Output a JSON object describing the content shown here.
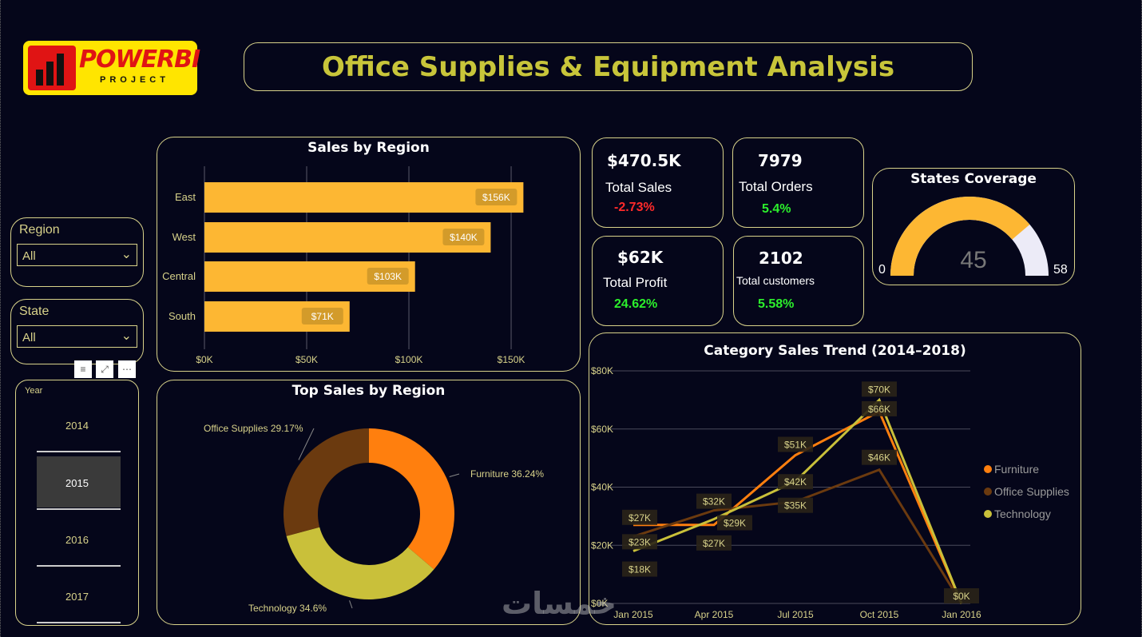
{
  "logo": {
    "line1": "POWERBI",
    "line2": "PROJECT"
  },
  "title": "Office Supplies & Equipment Analysis",
  "slicers": {
    "region": {
      "label": "Region",
      "value": "All"
    },
    "state": {
      "label": "State",
      "value": "All"
    },
    "year": {
      "label": "Year",
      "items": [
        "2014",
        "2015",
        "2016",
        "2017"
      ],
      "selected": "2015"
    }
  },
  "kpis": {
    "sales": {
      "value": "$470.5K",
      "label": "Total Sales",
      "delta": "-2.73%"
    },
    "orders": {
      "value": "7979",
      "label": "Total Orders",
      "delta": "5.4%"
    },
    "profit": {
      "value": "$62K",
      "label": "Total Profit",
      "delta": "24.62%"
    },
    "customers": {
      "value": "2102",
      "label": "Total customers",
      "delta": "5.58%"
    }
  },
  "gauge": {
    "title": "States Coverage",
    "value": 45,
    "min": 0,
    "max": 58,
    "value_label": "45",
    "min_label": "0",
    "max_label": "58"
  },
  "watermark": "خمسات",
  "colors": {
    "accent": "#fdb733",
    "title": "#c8c53a",
    "border": "#d8d28a",
    "furniture": "#ff7f0e",
    "office": "#6b3a0f",
    "technology": "#c9c03a"
  },
  "chart_data": [
    {
      "type": "bar",
      "title": "Sales by Region",
      "categories": [
        "East",
        "West",
        "Central",
        "South"
      ],
      "values": [
        156,
        140,
        103,
        71
      ],
      "value_labels": [
        "$156K",
        "$140K",
        "$103K",
        "$71K"
      ],
      "xticks": [
        "$0K",
        "$50K",
        "$100K",
        "$150K"
      ],
      "xlim": [
        0,
        170
      ]
    },
    {
      "type": "pie",
      "title": "Top Sales by Region",
      "labels": [
        "Furniture",
        "Technology",
        "Office Supplies"
      ],
      "values": [
        36.24,
        34.6,
        29.17
      ],
      "slice_labels": [
        "Furniture 36.24%",
        "Technology 34.6%",
        "Office Supplies 29.17%"
      ]
    },
    {
      "type": "line",
      "title": "Category Sales Trend (2014–2018)",
      "x": [
        "Jan 2015",
        "Apr 2015",
        "Jul 2015",
        "Oct 2015",
        "Jan 2016"
      ],
      "yticks": [
        "$0K",
        "$20K",
        "$40K",
        "$60K",
        "$80K"
      ],
      "ylim": [
        0,
        80
      ],
      "series": [
        {
          "name": "Furniture",
          "values": [
            27,
            27,
            51,
            66,
            0
          ]
        },
        {
          "name": "Office Supplies",
          "values": [
            23,
            32,
            35,
            46,
            0
          ]
        },
        {
          "name": "Technology",
          "values": [
            18,
            29,
            42,
            70,
            0
          ]
        }
      ],
      "data_labels": [
        {
          "text": "$27K",
          "xi": 0,
          "v": 27
        },
        {
          "text": "$23K",
          "xi": 0,
          "v": 23
        },
        {
          "text": "$18K",
          "xi": 0,
          "v": 18
        },
        {
          "text": "$32K",
          "xi": 1,
          "v": 32
        },
        {
          "text": "$29K",
          "xi": 1,
          "v": 29
        },
        {
          "text": "$27K",
          "xi": 1,
          "v": 27
        },
        {
          "text": "$51K",
          "xi": 2,
          "v": 51
        },
        {
          "text": "$42K",
          "xi": 2,
          "v": 42
        },
        {
          "text": "$35K",
          "xi": 2,
          "v": 35
        },
        {
          "text": "$70K",
          "xi": 3,
          "v": 70
        },
        {
          "text": "$66K",
          "xi": 3,
          "v": 66
        },
        {
          "text": "$46K",
          "xi": 3,
          "v": 46
        },
        {
          "text": "$0K",
          "xi": 4,
          "v": 0
        }
      ]
    }
  ]
}
